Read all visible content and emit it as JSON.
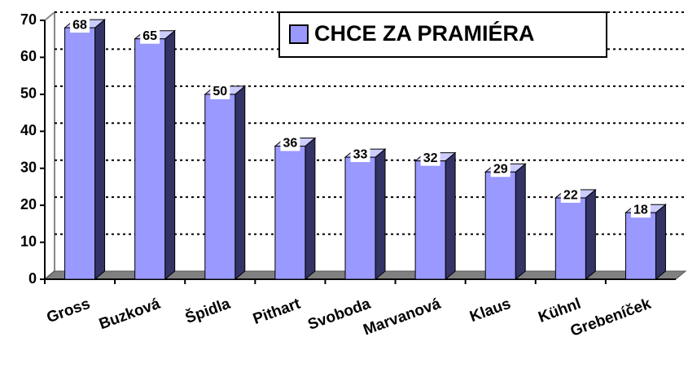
{
  "chart_data": {
    "type": "bar3d",
    "categories": [
      "Gross",
      "Buzková",
      "Špidla",
      "Pithart",
      "Svoboda",
      "Marvanová",
      "Klaus",
      "Kühnl",
      "Grebeníček"
    ],
    "series": [
      {
        "name": "CHCE ZA PRAMIÉRA",
        "color": "#9999ff",
        "values": [
          68,
          65,
          50,
          36,
          33,
          32,
          29,
          22,
          18
        ]
      }
    ],
    "ylim": [
      0,
      70
    ],
    "yticks": [
      0,
      10,
      20,
      30,
      40,
      50,
      60,
      70
    ],
    "grid": true,
    "legend": "top-right"
  }
}
